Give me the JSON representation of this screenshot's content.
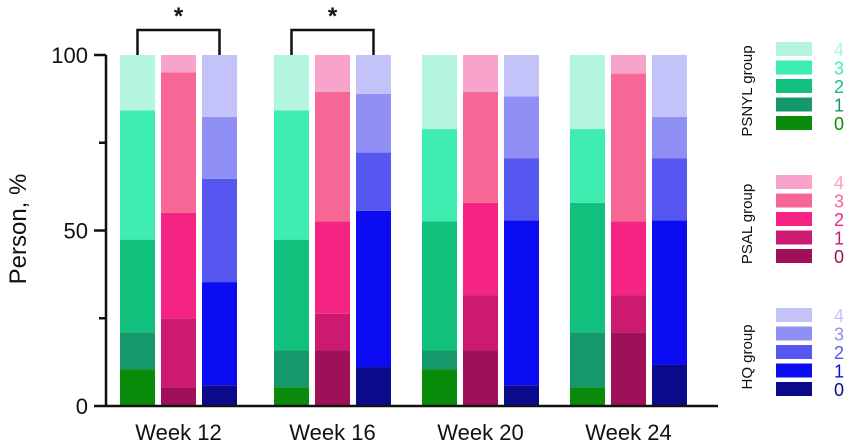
{
  "chart_data": {
    "type": "bar",
    "stacked": true,
    "ylabel": "Person, %",
    "ylim": [
      0,
      100
    ],
    "yticks": [
      0,
      50,
      100
    ],
    "categories": [
      "Week 12",
      "Week 16",
      "Week 20",
      "Week 24"
    ],
    "groups": [
      {
        "name": "PSNYL group",
        "levels": [
          "0",
          "1",
          "2",
          "3",
          "4"
        ],
        "colors": [
          "#0a8a0a",
          "#16996a",
          "#12c07e",
          "#40edb0",
          "#b3f5e0"
        ],
        "label_colors": [
          "#0a8a0a",
          "#16996a",
          "#12c07e",
          "#40edb0",
          "#b3f5e0"
        ],
        "cumulative_by_week": [
          [
            10.5,
            21,
            47.4,
            84.2,
            100
          ],
          [
            5.3,
            15.8,
            47.4,
            84.2,
            100
          ],
          [
            10.5,
            15.8,
            52.6,
            78.9,
            100
          ],
          [
            5.3,
            21,
            57.9,
            78.9,
            100
          ]
        ]
      },
      {
        "name": "PSAL group",
        "levels": [
          "0",
          "1",
          "2",
          "3",
          "4"
        ],
        "colors": [
          "#a01058",
          "#cc1a70",
          "#f52482",
          "#f76796",
          "#f7a3cb"
        ],
        "label_colors": [
          "#a01058",
          "#cc1a70",
          "#f52482",
          "#f76796",
          "#f7a3cb"
        ],
        "cumulative_by_week": [
          [
            5.3,
            25,
            55,
            95,
            100
          ],
          [
            15.8,
            26.3,
            52.6,
            89.5,
            100
          ],
          [
            15.8,
            31.6,
            57.9,
            89.5,
            100
          ],
          [
            21,
            31.6,
            52.6,
            94.7,
            100
          ]
        ]
      },
      {
        "name": "HQ group",
        "levels": [
          "0",
          "1",
          "2",
          "3",
          "4"
        ],
        "colors": [
          "#0a0a8a",
          "#0c0cf2",
          "#5656f0",
          "#8f8ff5",
          "#c3c3fa"
        ],
        "label_colors": [
          "#0a0a8a",
          "#0c0cf2",
          "#5656f0",
          "#8f8ff5",
          "#c3c3fa"
        ],
        "cumulative_by_week": [
          [
            5.9,
            35.3,
            64.7,
            82.4,
            100
          ],
          [
            11.1,
            55.6,
            72.2,
            88.9,
            100
          ],
          [
            5.9,
            52.9,
            70.6,
            88.2,
            100
          ],
          [
            11.8,
            52.9,
            70.6,
            82.4,
            100
          ]
        ]
      }
    ],
    "significance": [
      {
        "category": "Week 12",
        "between": [
          "PSNYL group",
          "HQ group"
        ],
        "label": "*"
      },
      {
        "category": "Week 16",
        "between": [
          "PSNYL group",
          "HQ group"
        ],
        "label": "*"
      }
    ]
  }
}
